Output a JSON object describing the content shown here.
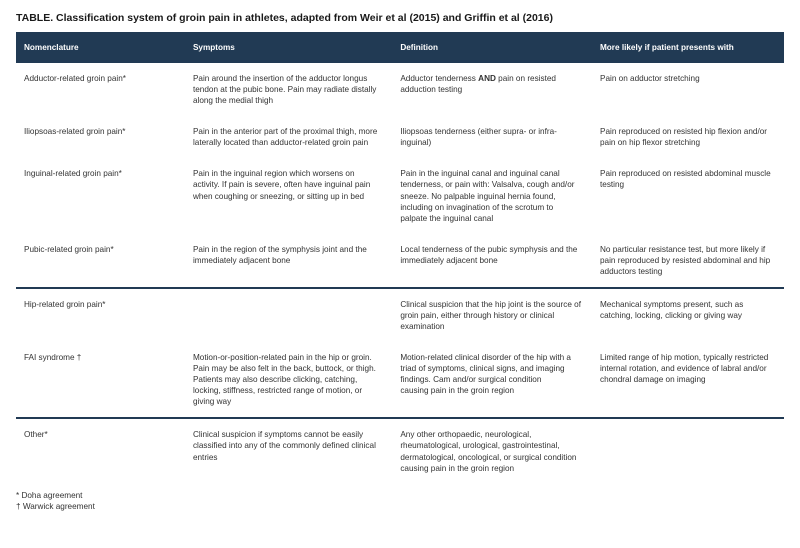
{
  "title_prefix": "TABLE.",
  "title_rest": " Classification system of groin pain in athletes, adapted from Weir et al (2015) and Griffin et al (2016)",
  "columns": [
    "Nomenclature",
    "Symptoms",
    "Definition",
    "More likely if patient presents with"
  ],
  "groups": [
    {
      "rows": [
        {
          "nom": "Adductor-related groin pain*",
          "sym": "Pain around the insertion of the adductor longus tendon at the pubic bone. Pain may radiate distally along the medial thigh",
          "def_pre": "Adductor tenderness ",
          "def_bold": "AND",
          "def_post": " pain on resisted adduction testing",
          "more": "Pain on adductor stretching"
        },
        {
          "nom": "Iliopsoas-related groin pain*",
          "sym": "Pain in the anterior part of the proximal thigh, more laterally located than adductor-related groin pain",
          "def": "Iliopsoas tenderness (either supra- or infra-inguinal)",
          "more": "Pain reproduced on resisted hip flexion and/or pain on hip flexor stretching"
        },
        {
          "nom": "Inguinal-related groin pain*",
          "sym": "Pain in the inguinal region which worsens on activity. If pain is severe, often have inguinal pain when coughing or sneezing, or sitting up in bed",
          "def": "Pain in the inguinal canal and inguinal canal tenderness, or pain with: Valsalva, cough and/or sneeze. No palpable inguinal hernia found, including on invagination of the scrotum to palpate the inguinal canal",
          "more": "Pain reproduced on resisted abdominal muscle testing"
        },
        {
          "nom": "Pubic-related groin pain*",
          "sym": "Pain in the region of the symphysis joint and the immediately adjacent bone",
          "def": "Local tenderness of the pubic symphysis and the immediately adjacent bone",
          "more": "No particular resistance test, but more likely if pain reproduced by resisted abdominal and hip adductors testing"
        }
      ]
    },
    {
      "rows": [
        {
          "nom": "Hip-related groin pain*",
          "sym": "",
          "def": "Clinical suspicion that the hip joint is the source of groin pain, either through history or clinical examination",
          "more": "Mechanical symptoms present, such as catching, locking, clicking or giving way"
        },
        {
          "nom": "FAI syndrome †",
          "sym": "Motion-or-position-related pain in the hip or groin. Pain may be also felt in the back, buttock, or thigh. Patients may also describe clicking, catching, locking, stiffness, restricted range of motion, or giving way",
          "def": "Motion-related clinical disorder of the hip with a triad of symptoms, clinical signs, and imaging findings. Cam and/or surgical condition\ncausing pain in the groin region",
          "more": "Limited range of hip motion, typically restricted internal rotation, and evidence of labral and/or chondral damage on imaging"
        }
      ]
    },
    {
      "rows": [
        {
          "nom": "Other*",
          "sym": "Clinical suspicion if symptoms cannot be easily classified into any of the commonly defined clinical entries",
          "def": "Any other orthopaedic, neurological, rheumatological, urological, gastrointestinal, dermatological, oncological, or surgical condition causing pain in the groin region",
          "more": ""
        }
      ]
    }
  ],
  "footnotes": [
    "* Doha agreement",
    "† Warwick agreement"
  ],
  "colors": {
    "header_bg": "#213a54",
    "header_text": "#ffffff",
    "body_text": "#333333",
    "sep": "#213a54"
  }
}
